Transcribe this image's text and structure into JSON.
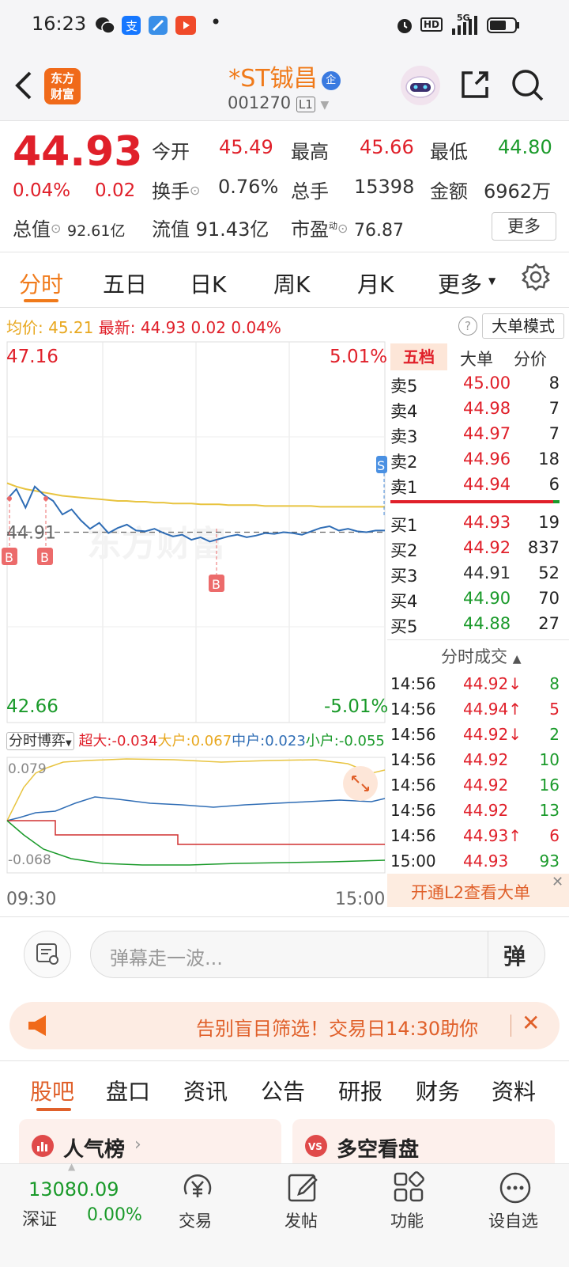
{
  "status_bar": {
    "time": "16:23",
    "dot": "•",
    "hd": "HD",
    "net": "5G"
  },
  "header": {
    "logo_line1": "东方",
    "logo_line2": "财富",
    "stock_name": "*ST铖昌",
    "badge": "企",
    "code": "001270",
    "level": "L1"
  },
  "quote": {
    "price": "44.93",
    "change_pct": "0.04%",
    "change_abs": "0.02",
    "open_label": "今开",
    "open": "45.49",
    "high_label": "最高",
    "high": "45.66",
    "low_label": "最低",
    "low": "44.80",
    "turnover_label": "换手",
    "turnover": "0.76%",
    "volume_label": "总手",
    "volume": "15398",
    "amount_label": "金额",
    "amount": "6962万",
    "mcap_label": "总值",
    "mcap": "92.61亿",
    "float_label": "流值 91.43亿",
    "pe_label": "市盈",
    "pe_sup": "动",
    "pe": "76.87",
    "more_btn": "更多"
  },
  "chart_tabs": [
    "分时",
    "五日",
    "日K",
    "周K",
    "月K",
    "更多"
  ],
  "avg_bar": {
    "avg_label": "均价:",
    "avg": "45.21",
    "latest_label": "最新:",
    "latest": "44.93",
    "chg": "0.02",
    "pct": "0.04%",
    "mode_btn": "大单模式"
  },
  "chart_data": {
    "type": "line",
    "ylim": [
      42.66,
      47.16
    ],
    "y_top_label": "47.16",
    "y_bottom_label": "42.66",
    "pct_top": "5.01%",
    "pct_bottom": "-5.01%",
    "prev_close_label": "44.91",
    "x_start": "09:30",
    "x_end": "15:00",
    "series": [
      {
        "values": [
          45.3,
          45.42,
          45.2,
          45.45,
          45.35,
          45.28,
          45.12,
          45.18,
          45.05,
          44.95,
          45.02,
          44.9,
          44.96,
          45.0,
          44.93,
          44.92,
          44.95,
          44.9,
          44.86,
          44.88,
          44.82,
          44.85,
          44.8,
          44.83,
          44.86,
          44.88,
          44.85,
          44.87,
          44.9,
          44.89,
          44.91,
          44.9,
          44.88,
          44.92,
          44.96,
          44.98,
          44.93,
          44.95,
          44.92,
          44.91,
          44.93,
          44.93
        ]
      },
      {
        "values": [
          45.49,
          45.45,
          45.42,
          45.4,
          45.38,
          45.36,
          45.34,
          45.33,
          45.32,
          45.31,
          45.3,
          45.29,
          45.28,
          45.28,
          45.27,
          45.27,
          45.26,
          45.26,
          45.25,
          45.25,
          45.25,
          45.24,
          45.24,
          45.24,
          45.23,
          45.23,
          45.23,
          45.23,
          45.22,
          45.22,
          45.22,
          45.22,
          45.22,
          45.22,
          45.21,
          45.21,
          45.21,
          45.21,
          45.21,
          45.21,
          45.21,
          45.21
        ]
      }
    ],
    "markers": [
      "B",
      "B",
      "B",
      "S"
    ]
  },
  "order_book": {
    "tabs": [
      "五档",
      "大单",
      "分价"
    ],
    "asks": [
      {
        "label": "卖5",
        "price": "45.00",
        "vol": "8"
      },
      {
        "label": "卖4",
        "price": "44.98",
        "vol": "7"
      },
      {
        "label": "卖3",
        "price": "44.97",
        "vol": "7"
      },
      {
        "label": "卖2",
        "price": "44.96",
        "vol": "18"
      },
      {
        "label": "卖1",
        "price": "44.94",
        "vol": "6"
      }
    ],
    "bids": [
      {
        "label": "买1",
        "price": "44.93",
        "vol": "19"
      },
      {
        "label": "买2",
        "price": "44.92",
        "vol": "837"
      },
      {
        "label": "买3",
        "price": "44.91",
        "vol": "52"
      },
      {
        "label": "买4",
        "price": "44.90",
        "vol": "70"
      },
      {
        "label": "买5",
        "price": "44.88",
        "vol": "27"
      }
    ],
    "ticks_title": "分时成交",
    "ticks": [
      {
        "time": "14:56",
        "price": "44.92↓",
        "vol": "8"
      },
      {
        "time": "14:56",
        "price": "44.94↑",
        "vol": "5"
      },
      {
        "time": "14:56",
        "price": "44.92↓",
        "vol": "2"
      },
      {
        "time": "14:56",
        "price": "44.92",
        "vol": "10"
      },
      {
        "time": "14:56",
        "price": "44.92",
        "vol": "16"
      },
      {
        "time": "14:56",
        "price": "44.92",
        "vol": "13"
      },
      {
        "time": "14:56",
        "price": "44.93↑",
        "vol": "6"
      },
      {
        "time": "15:00",
        "price": "44.93",
        "vol": "93"
      }
    ],
    "l2_text": "开通L2查看大单"
  },
  "flow": {
    "selector": "分时博弈",
    "super_label": "超大:",
    "super": "-0.034",
    "big_label": "大户:",
    "big": "0.067",
    "mid_label": "中户:",
    "mid": "0.023",
    "small_label": "小户:",
    "small": "-0.055",
    "top": "0.079",
    "bottom": "-0.068"
  },
  "danmu": {
    "placeholder": "弹幕走一波...",
    "btn": "弹"
  },
  "banner": {
    "text": "告别盲目筛选！交易日14:30助你"
  },
  "sub_tabs": [
    "股吧",
    "盘口",
    "资讯",
    "公告",
    "研报",
    "财务",
    "资料"
  ],
  "cards": {
    "left": "人气榜",
    "right": "多空看盘"
  },
  "bottom_nav": {
    "index_value": "13080.09",
    "index_name": "深证",
    "index_pct": "0.00%",
    "items": [
      "交易",
      "发帖",
      "功能",
      "设自选"
    ]
  },
  "colors": {
    "up": "#e0202a",
    "down": "#1a9a2a",
    "accent": "#f07a1a",
    "price_line": "#2f6db5",
    "avg_line": "#e8c440"
  }
}
